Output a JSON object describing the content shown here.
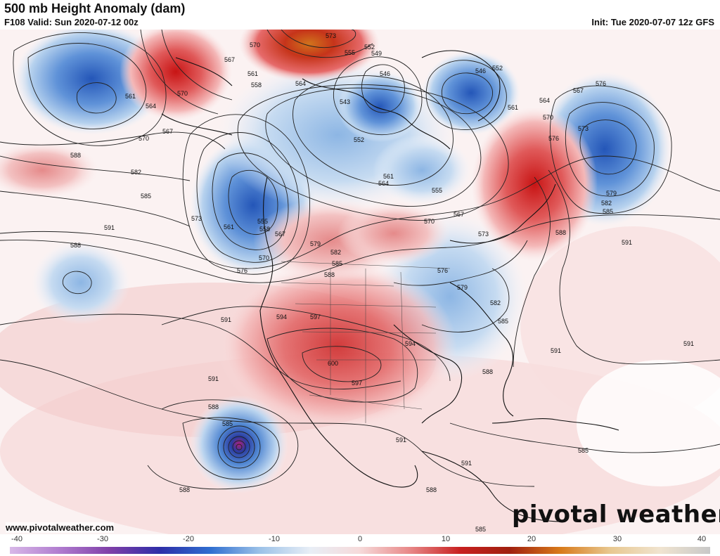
{
  "header": {
    "title": "500 mb Height Anomaly (dam)",
    "valid": "F108 Valid: Sun 2020-07-12 00z",
    "init": "Init: Tue 2020-07-07 12z GFS"
  },
  "footer": {
    "website": "www.pivotalweather.com",
    "brand": "pivotal weather"
  },
  "colorbar": {
    "ticks": [
      "-40",
      "-30",
      "-20",
      "-10",
      "0",
      "10",
      "20",
      "30",
      "40"
    ],
    "colors": [
      "#d8b8e8",
      "#b07ccf",
      "#7f3fa8",
      "#2e2ea8",
      "#2f6ed0",
      "#9cc2e8",
      "#e8eef6",
      "#f6dada",
      "#e88888",
      "#c82020",
      "#a0200f",
      "#d87a1a",
      "#e8c890",
      "#f0e4d0",
      "#c8c8c8"
    ]
  },
  "contour_labels": [
    "573",
    "570",
    "567",
    "561",
    "564",
    "558",
    "555",
    "552",
    "549",
    "546",
    "543",
    "561",
    "570",
    "567",
    "564",
    "570",
    "588",
    "582",
    "585",
    "591",
    "573",
    "561",
    "555",
    "558",
    "567",
    "570",
    "576",
    "579",
    "582",
    "585",
    "588",
    "591",
    "594",
    "597",
    "600",
    "597",
    "594",
    "591",
    "588",
    "585",
    "588",
    "591",
    "576",
    "579",
    "582",
    "585",
    "588",
    "573",
    "570",
    "567",
    "564",
    "561",
    "555",
    "552",
    "546",
    "552",
    "561",
    "564",
    "567",
    "570",
    "573",
    "576",
    "576",
    "579",
    "582",
    "585",
    "588",
    "591",
    "591",
    "591",
    "588",
    "585",
    "585",
    "588",
    "591"
  ]
}
